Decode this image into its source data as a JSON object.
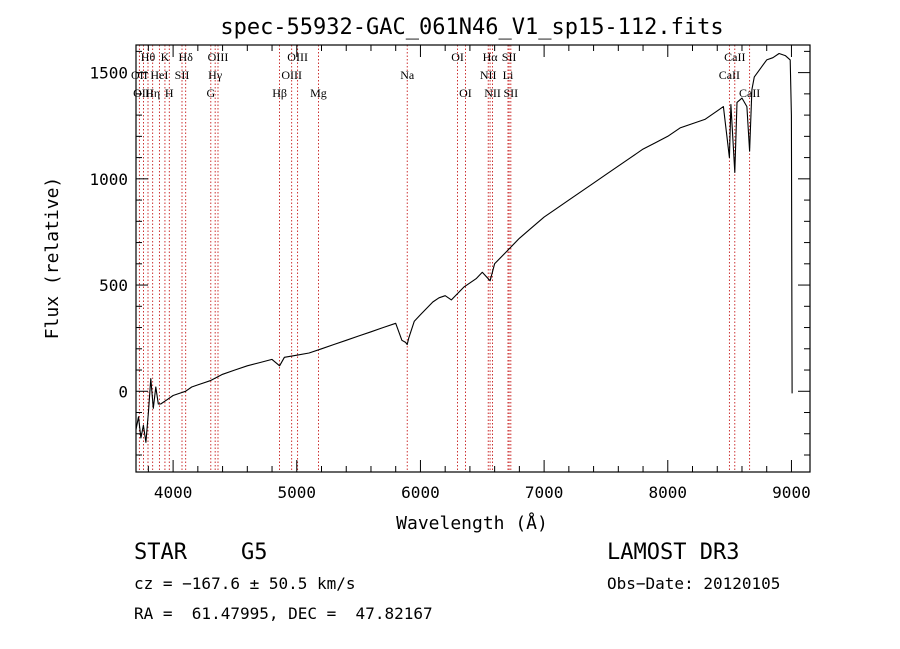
{
  "chart_data": {
    "type": "line",
    "title": "spec-55932-GAC_061N46_V1_sp15-112.fits",
    "xlabel": "Wavelength (Å)",
    "ylabel": "Flux (relative)",
    "xlim": [
      3700,
      9150
    ],
    "ylim": [
      -380,
      1630
    ],
    "xticks": [
      4000,
      5000,
      6000,
      7000,
      8000,
      9000
    ],
    "yticks": [
      0,
      500,
      1000,
      1500
    ],
    "xtick_labels": [
      "4000",
      "5000",
      "6000",
      "7000",
      "8000",
      "9000"
    ],
    "ytick_labels": [
      "0",
      "500",
      "1000",
      "1500"
    ],
    "series": [
      {
        "name": "flux",
        "x": [
          3700,
          3720,
          3740,
          3760,
          3780,
          3800,
          3820,
          3840,
          3860,
          3880,
          3900,
          3950,
          4000,
          4050,
          4100,
          4150,
          4200,
          4300,
          4400,
          4500,
          4600,
          4700,
          4800,
          4861,
          4900,
          5000,
          5100,
          5200,
          5300,
          5400,
          5500,
          5600,
          5700,
          5800,
          5850,
          5880,
          5893,
          5905,
          5950,
          6000,
          6050,
          6100,
          6150,
          6200,
          6250,
          6300,
          6350,
          6400,
          6450,
          6500,
          6563,
          6600,
          6700,
          6800,
          6900,
          7000,
          7100,
          7200,
          7300,
          7400,
          7500,
          7600,
          7700,
          7800,
          7900,
          8000,
          8100,
          8200,
          8300,
          8400,
          8450,
          8498,
          8510,
          8542,
          8560,
          8600,
          8640,
          8662,
          8680,
          8700,
          8750,
          8800,
          8850,
          8900,
          8950,
          8990,
          9000,
          9005
        ],
        "y": [
          -180,
          -120,
          -220,
          -160,
          -240,
          -100,
          60,
          -80,
          20,
          -60,
          -60,
          -40,
          -20,
          -10,
          0,
          20,
          30,
          50,
          80,
          100,
          120,
          135,
          150,
          120,
          160,
          170,
          180,
          200,
          220,
          240,
          260,
          280,
          300,
          320,
          240,
          230,
          220,
          250,
          330,
          360,
          390,
          420,
          440,
          450,
          430,
          460,
          490,
          510,
          530,
          560,
          520,
          600,
          660,
          720,
          770,
          820,
          860,
          900,
          940,
          980,
          1020,
          1060,
          1100,
          1140,
          1170,
          1200,
          1240,
          1260,
          1280,
          1320,
          1340,
          1100,
          1350,
          1030,
          1360,
          1380,
          1340,
          1130,
          1420,
          1480,
          1520,
          1560,
          1570,
          1590,
          1580,
          1560,
          1300,
          -10
        ]
      }
    ],
    "lines": [
      {
        "name": "Hθ",
        "x": 3797,
        "row": 0
      },
      {
        "name": "OII",
        "x": 3727,
        "row": 1
      },
      {
        "name": "OIII",
        "x": 3760,
        "row": 2
      },
      {
        "name": "Hη",
        "x": 3835,
        "row": 2
      },
      {
        "name": "K",
        "x": 3934,
        "row": 0
      },
      {
        "name": "HeI",
        "x": 3889,
        "row": 1
      },
      {
        "name": "H",
        "x": 3969,
        "row": 2
      },
      {
        "name": "Hδ",
        "x": 4102,
        "row": 0
      },
      {
        "name": "SII",
        "x": 4072,
        "row": 1
      },
      {
        "name": "OIII",
        "x": 4363,
        "row": 0
      },
      {
        "name": "Hγ",
        "x": 4340,
        "row": 1
      },
      {
        "name": "G",
        "x": 4305,
        "row": 2
      },
      {
        "name": "OIII",
        "x": 5007,
        "row": 0
      },
      {
        "name": "OIII",
        "x": 4959,
        "row": 1
      },
      {
        "name": "Hβ",
        "x": 4861,
        "row": 2
      },
      {
        "name": "Mg",
        "x": 5175,
        "row": 2
      },
      {
        "name": "Na",
        "x": 5893,
        "row": 1
      },
      {
        "name": "OI",
        "x": 6300,
        "row": 0
      },
      {
        "name": "OI",
        "x": 6364,
        "row": 2
      },
      {
        "name": "Hα",
        "x": 6563,
        "row": 0
      },
      {
        "name": "NII",
        "x": 6548,
        "row": 1
      },
      {
        "name": "NII",
        "x": 6583,
        "row": 2
      },
      {
        "name": "SII",
        "x": 6717,
        "row": 0
      },
      {
        "name": "Li",
        "x": 6708,
        "row": 1
      },
      {
        "name": "SII",
        "x": 6731,
        "row": 2
      },
      {
        "name": "CaII",
        "x": 8542,
        "row": 0
      },
      {
        "name": "CaII",
        "x": 8498,
        "row": 1
      },
      {
        "name": "CaII",
        "x": 8662,
        "row": 2
      }
    ],
    "line_color": "#c00000"
  },
  "info": {
    "class_label": "STAR",
    "subclass": "G5",
    "survey": "LAMOST DR3",
    "cz": "cz = −167.6 ± 50.5 km/s",
    "obs_date": "Obs−Date: 20120105",
    "coords": "RA =  61.47995, DEC =  47.82167"
  }
}
